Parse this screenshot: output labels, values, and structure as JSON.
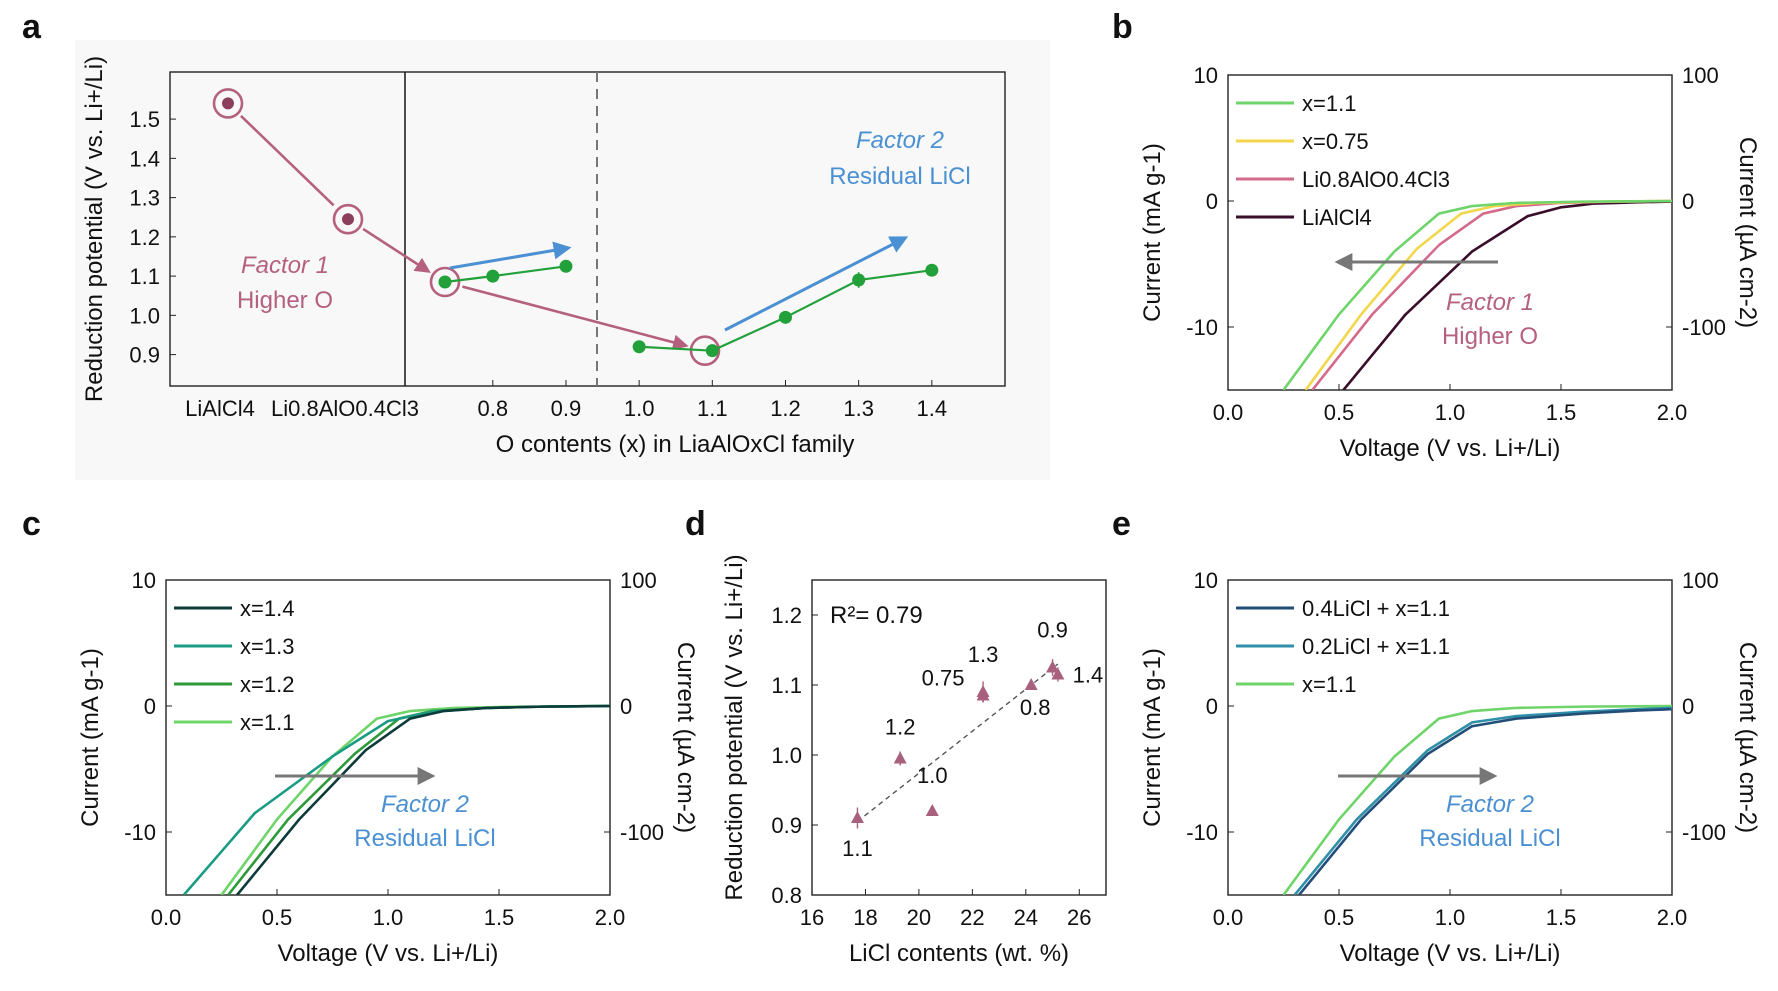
{
  "panel_letters": [
    "a",
    "b",
    "c",
    "d",
    "e"
  ],
  "chart_data": [
    {
      "panel": "a",
      "type": "line",
      "ylabel": "Reduction potential (V vs. Li+/Li)",
      "xlabel": "O contents (x) in LiaAlOxCl family",
      "ylim": [
        0.82,
        1.62
      ],
      "yticks": [
        "0.9",
        "1.0",
        "1.1",
        "1.2",
        "1.3",
        "1.4",
        "1.5"
      ],
      "xticks_left": [
        "LiAlCl4",
        "Li0.8AlO0.4Cl3"
      ],
      "xticks": [
        "0.8",
        "0.9",
        "1.0",
        "1.1",
        "1.2",
        "1.3",
        "1.4"
      ],
      "xlim": [
        0.68,
        1.5
      ],
      "series": [
        {
          "x": [
            0.75,
            0.8,
            0.9
          ],
          "y": [
            1.085,
            1.1,
            1.125
          ],
          "err": [
            0.01,
            0.01,
            0.015
          ],
          "color": "#22a13a"
        },
        {
          "x": [
            1.0,
            1.1,
            1.2,
            1.3,
            1.4
          ],
          "y": [
            0.92,
            0.91,
            0.995,
            1.09,
            1.115
          ],
          "err": [
            0.01,
            0.015,
            0.01,
            0.02,
            0.01
          ],
          "color": "#22a13a"
        }
      ],
      "extra_points": [
        {
          "label": "LiAlCl4",
          "y": 1.54
        },
        {
          "label": "Li0.8AlO0.4Cl3",
          "y": 1.245
        }
      ],
      "annotations": {
        "factor1_line1": "Factor 1",
        "factor1_line2": "Higher O",
        "factor2_line1": "Factor 2",
        "factor2_line2": "Residual LiCl"
      },
      "colors": {
        "factor1": "#b5607f",
        "factor2": "#4a90d2",
        "data": "#22a13a"
      }
    },
    {
      "panel": "b",
      "type": "line",
      "xlabel": "Voltage (V vs. Li+/Li)",
      "ylabel": "Current (mA g-1)",
      "ylabel_right": "Current (µA cm-2)",
      "xlim": [
        0,
        2.0
      ],
      "ylim": [
        -15,
        10
      ],
      "xticks": [
        "0.0",
        "0.5",
        "1.0",
        "1.5",
        "2.0"
      ],
      "yticks": [
        "10",
        "0",
        "-10"
      ],
      "yticks_right": [
        "100",
        "0",
        "-100"
      ],
      "series": [
        {
          "name": "x=1.1",
          "color": "#6fd46a",
          "x": [
            0.25,
            0.5,
            0.75,
            0.95,
            1.1,
            1.3,
            1.6,
            2.0
          ],
          "y": [
            -15,
            -9,
            -4,
            -1.0,
            -0.4,
            -0.15,
            -0.05,
            0
          ]
        },
        {
          "name": "x=0.75",
          "color": "#f2d64b",
          "x": [
            0.35,
            0.6,
            0.85,
            1.05,
            1.2,
            1.4,
            1.7,
            2.0
          ],
          "y": [
            -15,
            -9,
            -3.8,
            -1.0,
            -0.4,
            -0.15,
            -0.05,
            0
          ]
        },
        {
          "name": "Li0.8AlO0.4Cl3",
          "color": "#d36a8a",
          "x": [
            0.38,
            0.65,
            0.95,
            1.15,
            1.3,
            1.5,
            1.75,
            2.0
          ],
          "y": [
            -15,
            -9,
            -3.5,
            -1.0,
            -0.4,
            -0.15,
            -0.05,
            0
          ]
        },
        {
          "name": "LiAlCl4",
          "color": "#3a0e2b",
          "x": [
            0.52,
            0.8,
            1.1,
            1.35,
            1.5,
            1.65,
            1.85,
            2.0
          ],
          "y": [
            -15,
            -9,
            -4,
            -1.2,
            -0.5,
            -0.2,
            -0.1,
            -0.05
          ]
        }
      ],
      "annotations": {
        "line1": "Factor 1",
        "line2": "Higher O",
        "color": "#b5607f",
        "arrow_dir": "left"
      }
    },
    {
      "panel": "c",
      "type": "line",
      "xlabel": "Voltage (V vs. Li+/Li)",
      "ylabel": "Current (mA g-1)",
      "ylabel_right": "Current (µA cm-2)",
      "xlim": [
        0,
        2.0
      ],
      "ylim": [
        -15,
        10
      ],
      "xticks": [
        "0.0",
        "0.5",
        "1.0",
        "1.5",
        "2.0"
      ],
      "yticks": [
        "10",
        "0",
        "-10"
      ],
      "yticks_right": [
        "100",
        "0",
        "-100"
      ],
      "series": [
        {
          "name": "x=1.4",
          "color": "#0d3b3a",
          "x": [
            0.32,
            0.6,
            0.9,
            1.1,
            1.25,
            1.45,
            1.7,
            2.0
          ],
          "y": [
            -15,
            -9,
            -3.5,
            -1.0,
            -0.4,
            -0.15,
            -0.05,
            0
          ]
        },
        {
          "name": "x=1.3",
          "color": "#1a9b83",
          "x": [
            0.08,
            0.4,
            0.75,
            1.0,
            1.2,
            1.45,
            1.7,
            2.0
          ],
          "y": [
            -15,
            -8.5,
            -4,
            -1.2,
            -0.45,
            -0.15,
            -0.05,
            0
          ]
        },
        {
          "name": "x=1.2",
          "color": "#2e9a3a",
          "x": [
            0.28,
            0.55,
            0.85,
            1.05,
            1.2,
            1.45,
            1.7,
            2.0
          ],
          "y": [
            -15,
            -9,
            -3.8,
            -1.0,
            -0.4,
            -0.15,
            -0.05,
            0
          ]
        },
        {
          "name": "x=1.1",
          "color": "#6fd46a",
          "x": [
            0.25,
            0.5,
            0.75,
            0.95,
            1.1,
            1.3,
            1.6,
            2.0
          ],
          "y": [
            -15,
            -9,
            -4,
            -1.0,
            -0.4,
            -0.15,
            -0.05,
            0
          ]
        }
      ],
      "annotations": {
        "line1": "Factor 2",
        "line2": "Residual LiCl",
        "color": "#4a90d2",
        "arrow_dir": "right"
      }
    },
    {
      "panel": "d",
      "type": "scatter",
      "xlabel": "LiCl contents (wt. %)",
      "ylabel": "Reduction potential (V vs. Li+/Li)",
      "xlim": [
        16,
        27
      ],
      "ylim": [
        0.8,
        1.25
      ],
      "xticks": [
        "16",
        "18",
        "20",
        "22",
        "24",
        "26"
      ],
      "yticks": [
        "0.8",
        "0.9",
        "1.0",
        "1.1",
        "1.2"
      ],
      "r2_text": "R²= 0.79",
      "fit": {
        "x": [
          17.7,
          25.2
        ],
        "y": [
          0.905,
          1.13
        ]
      },
      "points": [
        {
          "label": "1.1",
          "x": 17.7,
          "y": 0.91,
          "err": 0.015
        },
        {
          "label": "1.2",
          "x": 19.3,
          "y": 0.995,
          "err": 0.01
        },
        {
          "label": "1.0",
          "x": 20.5,
          "y": 0.92,
          "err": 0.006
        },
        {
          "label": "0.75",
          "x": 22.4,
          "y": 1.085,
          "err": 0.01
        },
        {
          "label": "1.3",
          "x": 22.4,
          "y": 1.09,
          "err": 0.015
        },
        {
          "label": "0.8",
          "x": 24.2,
          "y": 1.1,
          "err": 0.005
        },
        {
          "label": "0.9",
          "x": 25.0,
          "y": 1.125,
          "err": 0.012
        },
        {
          "label": "1.4",
          "x": 25.2,
          "y": 1.115,
          "err": 0.01
        }
      ],
      "marker_color": "#a8607e"
    },
    {
      "panel": "e",
      "type": "line",
      "xlabel": "Voltage (V vs. Li+/Li)",
      "ylabel": "Current (mA g-1)",
      "ylabel_right": "Current (µA cm-2)",
      "xlim": [
        0,
        2.0
      ],
      "ylim": [
        -15,
        10
      ],
      "xticks": [
        "0.0",
        "0.5",
        "1.0",
        "1.5",
        "2.0"
      ],
      "yticks": [
        "10",
        "0",
        "-10"
      ],
      "yticks_right": [
        "100",
        "0",
        "-100"
      ],
      "series": [
        {
          "name": "0.4LiCl + x=1.1",
          "color": "#234e78",
          "x": [
            0.32,
            0.6,
            0.9,
            1.1,
            1.3,
            1.6,
            1.85,
            2.0
          ],
          "y": [
            -15,
            -9,
            -3.8,
            -1.6,
            -1.0,
            -0.6,
            -0.35,
            -0.25
          ]
        },
        {
          "name": "0.2LiCl + x=1.1",
          "color": "#2f8fa8",
          "x": [
            0.3,
            0.58,
            0.9,
            1.1,
            1.3,
            1.6,
            1.85,
            2.0
          ],
          "y": [
            -15,
            -9,
            -3.5,
            -1.3,
            -0.8,
            -0.45,
            -0.25,
            -0.15
          ]
        },
        {
          "name": "x=1.1",
          "color": "#6fd46a",
          "x": [
            0.25,
            0.5,
            0.75,
            0.95,
            1.1,
            1.3,
            1.6,
            2.0
          ],
          "y": [
            -15,
            -9,
            -4,
            -1.0,
            -0.4,
            -0.15,
            -0.05,
            0
          ]
        }
      ],
      "annotations": {
        "line1": "Factor 2",
        "line2": "Residual LiCl",
        "color": "#4a90d2",
        "arrow_dir": "right"
      }
    }
  ]
}
